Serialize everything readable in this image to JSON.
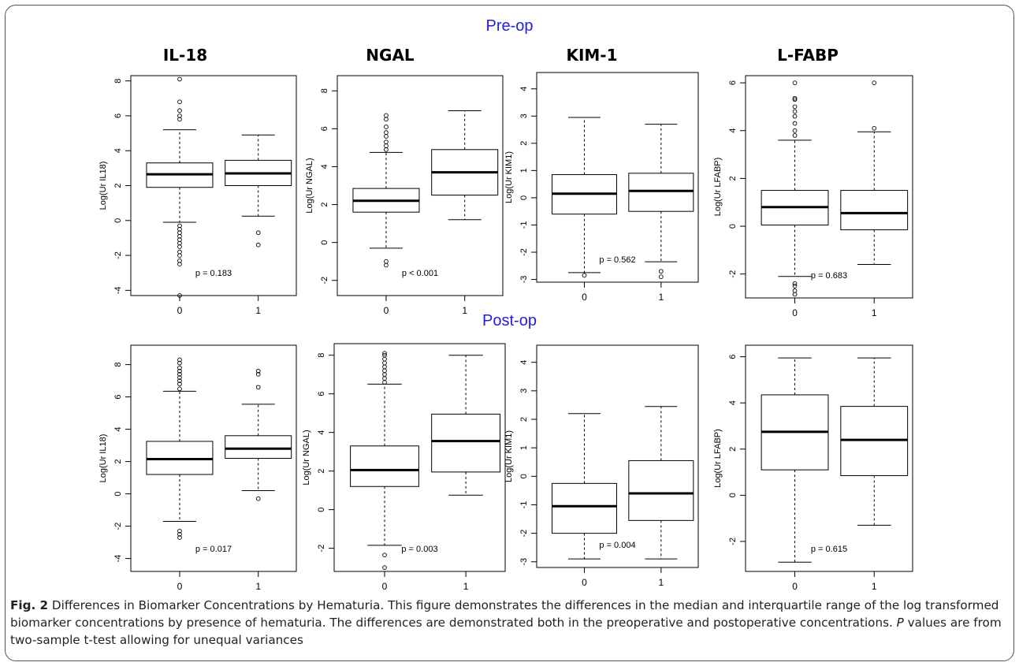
{
  "colors": {
    "section_title": "#1f1fe0",
    "axes": "#000000",
    "box": "#000000"
  },
  "titles": {
    "pre": "Pre-op",
    "post": "Post-op",
    "columns": [
      "IL-18",
      "NGAL",
      "KIM-1",
      "L-FABP"
    ]
  },
  "caption": {
    "label": "Fig. 2",
    "text": "Differences in Biomarker Concentrations by Hematuria. This figure demonstrates the differences in the median and interquartile range of the log transformed biomarker concentrations by presence of hematuria. The differences are demonstrated both in the preoperative and postoperative concentrations.",
    "p_label": "P",
    "text2": "values are from two-sample t-test allowing for unequal variances"
  },
  "chart_data": [
    {
      "type": "boxplot",
      "row": "Pre-op",
      "column": "IL-18",
      "ylabel": "Log(Ur IL18)",
      "categories": [
        "0",
        "1"
      ],
      "ylim": [
        -4.3,
        8.3
      ],
      "yticks": [
        -4,
        -2,
        0,
        2,
        4,
        6,
        8
      ],
      "pvalue": "p = 0.183",
      "boxes": [
        {
          "min": -0.1,
          "q1": 1.9,
          "median": 2.65,
          "q3": 3.3,
          "max": 5.2,
          "outliers": [
            5.8,
            6.0,
            6.3,
            6.8,
            8.1,
            -0.3,
            -0.5,
            -0.7,
            -0.9,
            -1.1,
            -1.3,
            -1.5,
            -1.8,
            -2.0,
            -2.3,
            -2.5,
            -4.3
          ]
        },
        {
          "min": 0.25,
          "q1": 2.0,
          "median": 2.7,
          "q3": 3.45,
          "max": 4.9,
          "outliers": [
            -0.7,
            -1.4
          ]
        }
      ]
    },
    {
      "type": "boxplot",
      "row": "Pre-op",
      "column": "NGAL",
      "ylabel": "Log(Ur NGAL)",
      "categories": [
        "0",
        "1"
      ],
      "ylim": [
        -2.8,
        8.8
      ],
      "yticks": [
        -2,
        0,
        2,
        4,
        6,
        8
      ],
      "pvalue": "p < 0.001",
      "boxes": [
        {
          "min": -0.3,
          "q1": 1.6,
          "median": 2.2,
          "q3": 2.85,
          "max": 4.75,
          "outliers": [
            4.9,
            5.1,
            5.3,
            5.6,
            5.8,
            6.1,
            6.5,
            6.7,
            -1.0,
            -1.2
          ]
        },
        {
          "min": 1.2,
          "q1": 2.5,
          "median": 3.7,
          "q3": 4.9,
          "max": 6.95,
          "outliers": []
        }
      ]
    },
    {
      "type": "boxplot",
      "row": "Pre-op",
      "column": "KIM-1",
      "ylabel": "Log(Ur KIM1)",
      "categories": [
        "0",
        "1"
      ],
      "ylim": [
        -3.1,
        4.6
      ],
      "yticks": [
        -3,
        -2,
        -1,
        0,
        1,
        2,
        3,
        4
      ],
      "pvalue": "p = 0.562",
      "boxes": [
        {
          "min": -2.75,
          "q1": -0.6,
          "median": 0.15,
          "q3": 0.85,
          "max": 2.95,
          "outliers": [
            -2.85
          ]
        },
        {
          "min": -2.35,
          "q1": -0.5,
          "median": 0.25,
          "q3": 0.9,
          "max": 2.7,
          "outliers": [
            -2.7,
            -2.9
          ]
        }
      ]
    },
    {
      "type": "boxplot",
      "row": "Pre-op",
      "column": "L-FABP",
      "ylabel": "Log(Ur LFABP)",
      "categories": [
        "0",
        "1"
      ],
      "ylim": [
        -3.0,
        6.3
      ],
      "yticks": [
        -2,
        0,
        2,
        4,
        6
      ],
      "pvalue": "p = 0.683",
      "boxes": [
        {
          "min": -2.1,
          "q1": 0.05,
          "median": 0.8,
          "q3": 1.5,
          "max": 3.6,
          "outliers": [
            3.8,
            4.0,
            4.3,
            4.6,
            4.8,
            5.0,
            5.3,
            5.35,
            6.0,
            -2.4,
            -2.5,
            -2.7,
            -2.85
          ]
        },
        {
          "min": -1.6,
          "q1": -0.15,
          "median": 0.55,
          "q3": 1.5,
          "max": 3.95,
          "outliers": [
            4.1,
            6.0
          ]
        }
      ]
    },
    {
      "type": "boxplot",
      "row": "Post-op",
      "column": "IL-18",
      "ylabel": "Log(Ur IL18)",
      "categories": [
        "0",
        "1"
      ],
      "ylim": [
        -4.8,
        9.2
      ],
      "yticks": [
        -4,
        -2,
        0,
        2,
        4,
        6,
        8
      ],
      "pvalue": "p = 0.017",
      "boxes": [
        {
          "min": -1.7,
          "q1": 1.2,
          "median": 2.15,
          "q3": 3.25,
          "max": 6.35,
          "outliers": [
            6.5,
            6.8,
            7.0,
            7.2,
            7.4,
            7.6,
            7.8,
            8.1,
            8.3,
            -2.3,
            -2.5,
            -2.7
          ]
        },
        {
          "min": 0.2,
          "q1": 2.2,
          "median": 2.8,
          "q3": 3.6,
          "max": 5.55,
          "outliers": [
            6.6,
            7.4,
            7.6,
            -0.3
          ]
        }
      ]
    },
    {
      "type": "boxplot",
      "row": "Post-op",
      "column": "NGAL",
      "ylabel": "Log(Ur NGAL)",
      "categories": [
        "0",
        "1"
      ],
      "ylim": [
        -3.2,
        8.6
      ],
      "yticks": [
        -2,
        0,
        2,
        4,
        6,
        8
      ],
      "pvalue": "p = 0.003",
      "boxes": [
        {
          "min": -1.85,
          "q1": 1.2,
          "median": 2.05,
          "q3": 3.3,
          "max": 6.5,
          "outliers": [
            6.6,
            6.8,
            7.0,
            7.2,
            7.4,
            7.6,
            7.8,
            8.0,
            8.1,
            -2.35,
            -3.0
          ]
        },
        {
          "min": 0.75,
          "q1": 1.95,
          "median": 3.55,
          "q3": 4.95,
          "max": 8.0,
          "outliers": []
        }
      ]
    },
    {
      "type": "boxplot",
      "row": "Post-op",
      "column": "KIM-1",
      "ylabel": "Log(Ur KIM1)",
      "categories": [
        "0",
        "1"
      ],
      "ylim": [
        -3.2,
        4.6
      ],
      "yticks": [
        -3,
        -2,
        -1,
        0,
        1,
        2,
        3,
        4
      ],
      "pvalue": "p = 0.004",
      "boxes": [
        {
          "min": -2.9,
          "q1": -2.0,
          "median": -1.05,
          "q3": -0.25,
          "max": 2.2,
          "outliers": []
        },
        {
          "min": -2.9,
          "q1": -1.55,
          "median": -0.6,
          "q3": 0.55,
          "max": 2.45,
          "outliers": []
        }
      ]
    },
    {
      "type": "boxplot",
      "row": "Post-op",
      "column": "L-FABP",
      "ylabel": "Log(Ur LFABP)",
      "categories": [
        "0",
        "1"
      ],
      "ylim": [
        -3.3,
        6.5
      ],
      "yticks": [
        -2,
        0,
        2,
        4,
        6
      ],
      "pvalue": "p = 0.615",
      "boxes": [
        {
          "min": -2.9,
          "q1": 1.1,
          "median": 2.75,
          "q3": 4.35,
          "max": 5.95,
          "outliers": []
        },
        {
          "min": -1.3,
          "q1": 0.85,
          "median": 2.4,
          "q3": 3.85,
          "max": 5.95,
          "outliers": []
        }
      ]
    }
  ]
}
